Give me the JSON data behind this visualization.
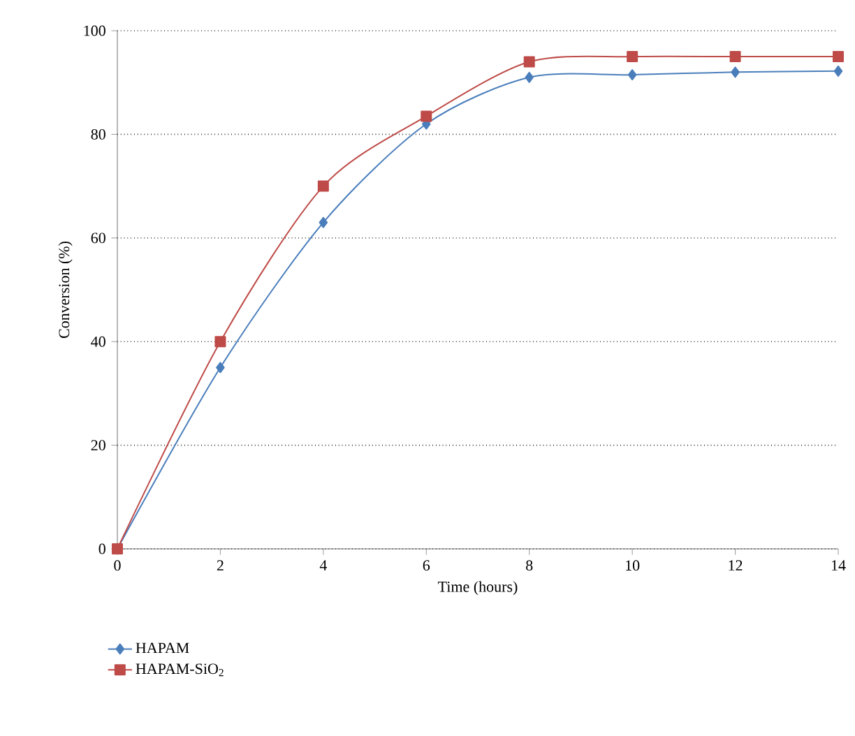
{
  "chart_data": {
    "type": "line",
    "xlabel": "Time (hours)",
    "ylabel": "Conversion (%)",
    "x": [
      0,
      2,
      4,
      6,
      8,
      10,
      12,
      14
    ],
    "xlim": [
      0,
      14
    ],
    "xticks": [
      0,
      2,
      4,
      6,
      8,
      10,
      12,
      14
    ],
    "ylim": [
      0,
      100
    ],
    "yticks": [
      0,
      20,
      40,
      60,
      80,
      100
    ],
    "grid": "y",
    "legend": "bottom left",
    "series": [
      {
        "name": "HAPAM",
        "color": "#4a7ebb",
        "marker": "diamond",
        "values": [
          0,
          35,
          63,
          82,
          91,
          91.5,
          92,
          92.2
        ]
      },
      {
        "name": "HAPAM-SiO$_{2}$",
        "color": "#be4b48",
        "marker": "square",
        "values": [
          0,
          40,
          70,
          83.5,
          94,
          95,
          95,
          95
        ]
      }
    ]
  }
}
